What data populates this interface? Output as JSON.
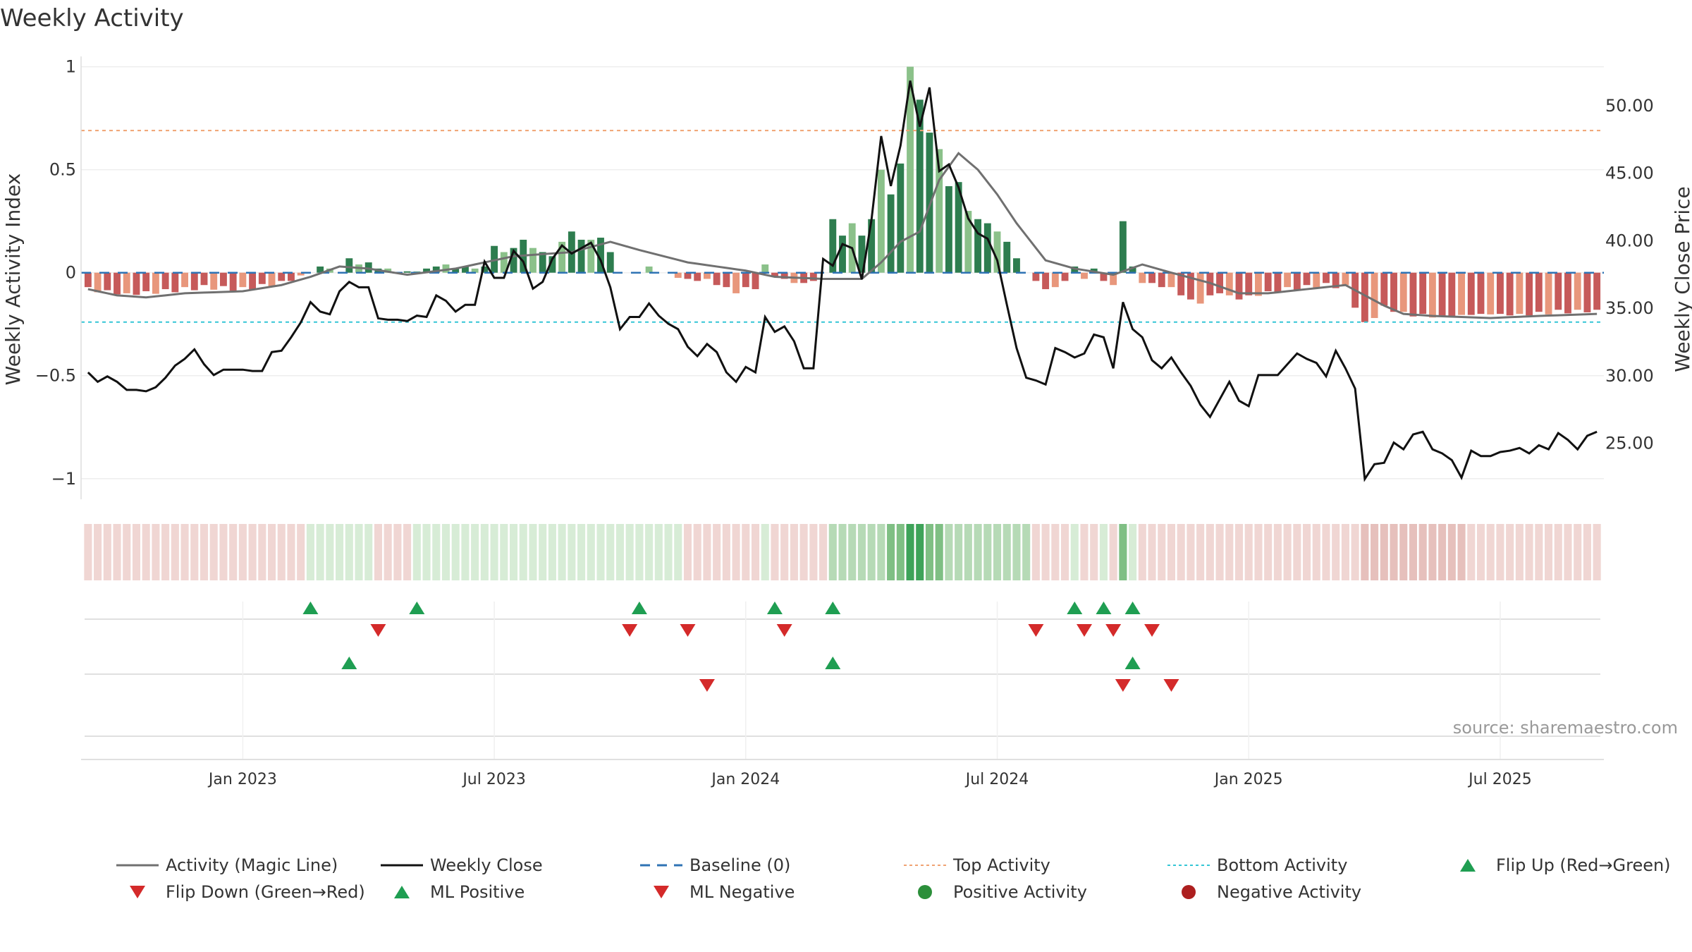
{
  "chart_data": {
    "type": "bar+line",
    "title": "Weekly Activity",
    "ylabel_left": "Weekly Activity Index",
    "ylabel_right": "Weekly Close Price",
    "ylim_left": [
      -1.1,
      1.05
    ],
    "ylim_right": [
      20.8,
      53.6
    ],
    "yticks_left": [
      1,
      0.5,
      0,
      -0.5,
      -1
    ],
    "yticks_left_labels": [
      "1",
      "0.5",
      "0",
      "−0.5",
      "−1"
    ],
    "yticks_right": [
      50,
      45,
      40,
      35,
      30,
      25
    ],
    "yticks_right_labels": [
      "50.00",
      "45.00",
      "40.00",
      "35.00",
      "30.00",
      "25.00"
    ],
    "x_start": "2022-09-12",
    "weeks": 157,
    "xticks": [
      {
        "week": 16,
        "label": "Jan 2023"
      },
      {
        "week": 42,
        "label": "Jul 2023"
      },
      {
        "week": 68,
        "label": "Jan 2024"
      },
      {
        "week": 94,
        "label": "Jul 2024"
      },
      {
        "week": 120,
        "label": "Jan 2025"
      },
      {
        "week": 146,
        "label": "Jul 2025"
      }
    ],
    "top_activity": 0.69,
    "bottom_activity": -0.24,
    "baseline": 0,
    "activity_keys": [
      [
        0,
        -0.08
      ],
      [
        3,
        -0.11
      ],
      [
        6,
        -0.12
      ],
      [
        10,
        -0.1
      ],
      [
        16,
        -0.09
      ],
      [
        20,
        -0.06
      ],
      [
        23,
        -0.02
      ],
      [
        26,
        0.03
      ],
      [
        29,
        0.02
      ],
      [
        33,
        -0.01
      ],
      [
        38,
        0.02
      ],
      [
        44,
        0.08
      ],
      [
        50,
        0.1
      ],
      [
        54,
        0.15
      ],
      [
        57,
        0.11
      ],
      [
        62,
        0.05
      ],
      [
        68,
        0.01
      ],
      [
        71,
        -0.02
      ],
      [
        76,
        -0.03
      ],
      [
        80,
        -0.03
      ],
      [
        82,
        0.05
      ],
      [
        84,
        0.15
      ],
      [
        86,
        0.2
      ],
      [
        88,
        0.45
      ],
      [
        90,
        0.58
      ],
      [
        92,
        0.5
      ],
      [
        94,
        0.38
      ],
      [
        96,
        0.24
      ],
      [
        99,
        0.06
      ],
      [
        102,
        0.02
      ],
      [
        106,
        -0.01
      ],
      [
        109,
        0.04
      ],
      [
        112,
        0.0
      ],
      [
        116,
        -0.05
      ],
      [
        119,
        -0.1
      ],
      [
        122,
        -0.1
      ],
      [
        126,
        -0.08
      ],
      [
        130,
        -0.06
      ],
      [
        134,
        -0.16
      ],
      [
        136,
        -0.2
      ],
      [
        139,
        -0.21
      ],
      [
        145,
        -0.22
      ],
      [
        150,
        -0.21
      ],
      [
        156,
        -0.2
      ]
    ],
    "close_keys": [
      [
        0,
        30.2
      ],
      [
        1,
        29.5
      ],
      [
        2,
        29.9
      ],
      [
        3,
        29.5
      ],
      [
        4,
        28.9
      ],
      [
        5,
        28.9
      ],
      [
        6,
        28.8
      ],
      [
        7,
        29.1
      ],
      [
        8,
        29.8
      ],
      [
        9,
        30.7
      ],
      [
        10,
        31.2
      ],
      [
        11,
        31.9
      ],
      [
        12,
        30.8
      ],
      [
        13,
        30.0
      ],
      [
        14,
        30.4
      ],
      [
        15,
        30.4
      ],
      [
        16,
        30.4
      ],
      [
        17,
        30.3
      ],
      [
        18,
        30.3
      ],
      [
        19,
        31.7
      ],
      [
        20,
        31.8
      ],
      [
        21,
        32.8
      ],
      [
        22,
        33.9
      ],
      [
        23,
        35.4
      ],
      [
        24,
        34.7
      ],
      [
        25,
        34.5
      ],
      [
        26,
        36.2
      ],
      [
        27,
        36.9
      ],
      [
        28,
        36.5
      ],
      [
        29,
        36.5
      ],
      [
        30,
        34.2
      ],
      [
        31,
        34.1
      ],
      [
        32,
        34.1
      ],
      [
        33,
        34.0
      ],
      [
        34,
        34.4
      ],
      [
        35,
        34.3
      ],
      [
        36,
        35.9
      ],
      [
        37,
        35.5
      ],
      [
        38,
        34.7
      ],
      [
        39,
        35.2
      ],
      [
        40,
        35.2
      ],
      [
        41,
        38.4
      ],
      [
        42,
        37.2
      ],
      [
        43,
        37.2
      ],
      [
        44,
        39.2
      ],
      [
        45,
        38.4
      ],
      [
        46,
        36.4
      ],
      [
        47,
        36.9
      ],
      [
        48,
        38.6
      ],
      [
        49,
        39.6
      ],
      [
        50,
        39.0
      ],
      [
        51,
        39.4
      ],
      [
        52,
        39.8
      ],
      [
        53,
        38.5
      ],
      [
        54,
        36.5
      ],
      [
        55,
        33.4
      ],
      [
        56,
        34.3
      ],
      [
        57,
        34.3
      ],
      [
        58,
        35.3
      ],
      [
        59,
        34.4
      ],
      [
        60,
        33.8
      ],
      [
        61,
        33.4
      ],
      [
        62,
        32.1
      ],
      [
        63,
        31.4
      ],
      [
        64,
        32.3
      ],
      [
        65,
        31.7
      ],
      [
        66,
        30.2
      ],
      [
        67,
        29.5
      ],
      [
        68,
        30.6
      ],
      [
        69,
        30.2
      ],
      [
        70,
        34.3
      ],
      [
        71,
        33.2
      ],
      [
        72,
        33.6
      ],
      [
        73,
        32.5
      ],
      [
        74,
        30.5
      ],
      [
        75,
        30.5
      ],
      [
        76,
        38.6
      ],
      [
        77,
        38.1
      ],
      [
        78,
        39.7
      ],
      [
        79,
        39.4
      ],
      [
        80,
        37.1
      ],
      [
        81,
        41.5
      ],
      [
        82,
        47.7
      ],
      [
        83,
        44.0
      ],
      [
        84,
        47.0
      ],
      [
        85,
        51.8
      ],
      [
        86,
        48.4
      ],
      [
        87,
        51.3
      ],
      [
        88,
        45.1
      ],
      [
        89,
        45.6
      ],
      [
        90,
        43.9
      ],
      [
        91,
        41.6
      ],
      [
        92,
        40.5
      ],
      [
        93,
        40.1
      ],
      [
        94,
        38.5
      ],
      [
        95,
        35.2
      ],
      [
        96,
        32.0
      ],
      [
        97,
        29.8
      ],
      [
        98,
        29.6
      ],
      [
        99,
        29.3
      ],
      [
        100,
        32.0
      ],
      [
        101,
        31.7
      ],
      [
        102,
        31.3
      ],
      [
        103,
        31.6
      ],
      [
        104,
        33.0
      ],
      [
        105,
        32.8
      ],
      [
        106,
        30.5
      ],
      [
        107,
        35.4
      ],
      [
        108,
        33.4
      ],
      [
        109,
        32.8
      ],
      [
        110,
        31.1
      ],
      [
        111,
        30.5
      ],
      [
        112,
        31.3
      ],
      [
        113,
        30.2
      ],
      [
        114,
        29.2
      ],
      [
        115,
        27.8
      ],
      [
        116,
        26.9
      ],
      [
        117,
        28.2
      ],
      [
        118,
        29.5
      ],
      [
        119,
        28.1
      ],
      [
        120,
        27.7
      ],
      [
        121,
        30.0
      ],
      [
        122,
        30.0
      ],
      [
        123,
        30.0
      ],
      [
        124,
        30.8
      ],
      [
        125,
        31.6
      ],
      [
        126,
        31.2
      ],
      [
        127,
        30.9
      ],
      [
        128,
        29.9
      ],
      [
        129,
        31.8
      ],
      [
        130,
        30.5
      ],
      [
        131,
        29.0
      ],
      [
        132,
        22.3
      ],
      [
        133,
        23.4
      ],
      [
        134,
        23.5
      ],
      [
        135,
        25.0
      ],
      [
        136,
        24.5
      ],
      [
        137,
        25.6
      ],
      [
        138,
        25.8
      ],
      [
        139,
        24.5
      ],
      [
        140,
        24.2
      ],
      [
        141,
        23.7
      ],
      [
        142,
        22.4
      ],
      [
        143,
        24.4
      ],
      [
        144,
        24.0
      ],
      [
        145,
        24.0
      ],
      [
        146,
        24.3
      ],
      [
        147,
        24.4
      ],
      [
        148,
        24.6
      ],
      [
        149,
        24.2
      ],
      [
        150,
        24.8
      ],
      [
        151,
        24.5
      ],
      [
        152,
        25.7
      ],
      [
        153,
        25.2
      ],
      [
        154,
        24.5
      ],
      [
        155,
        25.5
      ],
      [
        156,
        25.8
      ]
    ],
    "bar_keys": [
      [
        0,
        -0.07,
        -0.09
      ],
      [
        4,
        -0.1,
        -0.11
      ],
      [
        8,
        -0.08,
        -0.1
      ],
      [
        12,
        -0.06,
        -0.08
      ],
      [
        16,
        -0.07,
        -0.09
      ],
      [
        20,
        -0.04,
        -0.06
      ],
      [
        23,
        0.0,
        0.0
      ],
      [
        24,
        0.03,
        0.04
      ],
      [
        25,
        0.01,
        0.02
      ],
      [
        26,
        0.0,
        0.0
      ],
      [
        27,
        0.05,
        0.07
      ],
      [
        28,
        0.04,
        0.08
      ],
      [
        29,
        0.03,
        0.05
      ],
      [
        30,
        0.02,
        0.04
      ],
      [
        32,
        0.0,
        0.0
      ],
      [
        35,
        0.01,
        0.02
      ],
      [
        36,
        0.03,
        0.05
      ],
      [
        37,
        0.02,
        0.04
      ],
      [
        38,
        0.02,
        0.03
      ],
      [
        39,
        0.02,
        0.03
      ],
      [
        40,
        0.02,
        0.04
      ],
      [
        41,
        0.02,
        0.03
      ],
      [
        42,
        0.13,
        0.15
      ],
      [
        43,
        0.08,
        0.1
      ],
      [
        44,
        0.12,
        0.14
      ],
      [
        45,
        0.14,
        0.16
      ],
      [
        46,
        0.12,
        0.15
      ],
      [
        47,
        0.08,
        0.1
      ],
      [
        48,
        0.08,
        0.09
      ],
      [
        49,
        0.11,
        0.15
      ],
      [
        50,
        0.2,
        0.22
      ],
      [
        51,
        0.14,
        0.16
      ],
      [
        52,
        0.16,
        0.18
      ],
      [
        53,
        0.17,
        0.17
      ],
      [
        54,
        0.1,
        0.06
      ],
      [
        55,
        0.0,
        0.0
      ],
      [
        56,
        0.0,
        0.0
      ],
      [
        57,
        0.0,
        0.0
      ],
      [
        58,
        0.03,
        0.04
      ],
      [
        59,
        0.03,
        0.0
      ],
      [
        60,
        0.0,
        0.0
      ],
      [
        62,
        -0.03,
        -0.05
      ],
      [
        64,
        -0.03,
        -0.03
      ],
      [
        66,
        -0.07,
        -0.09
      ],
      [
        67,
        -0.1,
        -0.1
      ],
      [
        68,
        -0.07,
        -0.06
      ],
      [
        69,
        -0.06,
        -0.08
      ],
      [
        70,
        0.04,
        0.05
      ],
      [
        71,
        -0.02,
        -0.02
      ],
      [
        72,
        -0.03,
        -0.03
      ],
      [
        73,
        -0.04,
        -0.05
      ],
      [
        74,
        -0.05,
        -0.06
      ],
      [
        75,
        -0.03,
        -0.04
      ],
      [
        76,
        0.0,
        0.0
      ],
      [
        77,
        0.26,
        0.26
      ],
      [
        78,
        0.18,
        0.18
      ],
      [
        79,
        0.24,
        0.24
      ],
      [
        80,
        0.18,
        0.18
      ],
      [
        81,
        0.26,
        0.26
      ],
      [
        82,
        0.5,
        0.65
      ],
      [
        83,
        0.38,
        0.38
      ],
      [
        84,
        0.53,
        0.53
      ],
      [
        85,
        1.0,
        1.0
      ],
      [
        86,
        0.84,
        0.84
      ],
      [
        87,
        0.68,
        0.68
      ],
      [
        88,
        0.6,
        0.6
      ],
      [
        89,
        0.42,
        0.42
      ],
      [
        90,
        0.44,
        0.44
      ],
      [
        91,
        0.3,
        0.3
      ],
      [
        92,
        0.26,
        0.26
      ],
      [
        93,
        0.24,
        0.24
      ],
      [
        94,
        0.2,
        0.2
      ],
      [
        95,
        0.15,
        0.15
      ],
      [
        96,
        0.07,
        0.07
      ],
      [
        97,
        0.0,
        0.0
      ],
      [
        98,
        -0.04,
        -0.06
      ],
      [
        99,
        -0.06,
        -0.08
      ],
      [
        100,
        -0.07,
        -0.09
      ],
      [
        101,
        -0.04,
        -0.04
      ],
      [
        102,
        0.03,
        0.03
      ],
      [
        103,
        -0.03,
        -0.03
      ],
      [
        104,
        0.02,
        0.02
      ],
      [
        105,
        -0.03,
        -0.04
      ],
      [
        106,
        -0.06,
        -0.06
      ],
      [
        107,
        0.25,
        0.25
      ],
      [
        108,
        0.03,
        0.03
      ],
      [
        109,
        -0.03,
        -0.05
      ],
      [
        110,
        -0.05,
        -0.06
      ],
      [
        111,
        -0.06,
        -0.07
      ],
      [
        112,
        -0.07,
        -0.1
      ],
      [
        113,
        -0.09,
        -0.11
      ],
      [
        114,
        -0.13,
        -0.15
      ],
      [
        115,
        -0.15,
        -0.15
      ],
      [
        116,
        -0.11,
        -0.12
      ],
      [
        117,
        -0.09,
        -0.1
      ],
      [
        118,
        -0.11,
        -0.13
      ],
      [
        119,
        -0.12,
        -0.13
      ],
      [
        120,
        -0.11,
        -0.12
      ],
      [
        124,
        -0.07,
        -0.09
      ],
      [
        128,
        -0.05,
        -0.07
      ],
      [
        130,
        -0.06,
        -0.08
      ],
      [
        132,
        -0.24,
        -0.26
      ],
      [
        133,
        -0.2,
        -0.22
      ],
      [
        134,
        -0.16,
        -0.17
      ],
      [
        136,
        -0.19,
        -0.21
      ],
      [
        140,
        -0.21,
        -0.22
      ],
      [
        144,
        -0.2,
        -0.2
      ],
      [
        148,
        -0.2,
        -0.21
      ],
      [
        152,
        -0.18,
        -0.2
      ],
      [
        156,
        -0.18,
        -0.19
      ]
    ],
    "color_palette": {
      "pos_strong": "#2e7d4f",
      "pos_light": "#8bc18a",
      "neg_strong": "#c65a5a",
      "neg_light": "#e8977c",
      "band_pos_1": "#d7ecd6",
      "band_pos_2": "#b6dab6",
      "band_pos_3": "#7fbf84",
      "band_pos_4": "#3ea359",
      "band_neg_1": "#f0d6d3",
      "band_neg_2": "#e6c0bc",
      "close": "#111111",
      "magic": "#707070",
      "baseline": "#2f73b4",
      "top": "#f0a373",
      "bottom": "#35c6d6",
      "flip_up": "#1f9e52",
      "flip_down": "#d42a2a",
      "pos_dot": "#2b8f3a",
      "neg_dot": "#ad1f1f"
    },
    "band_levels": [
      [
        0,
        -1
      ],
      [
        23,
        1
      ],
      [
        30,
        -1
      ],
      [
        34,
        1
      ],
      [
        56,
        1
      ],
      [
        57,
        1
      ],
      [
        62,
        -1
      ],
      [
        70,
        1
      ],
      [
        71,
        -1
      ],
      [
        77,
        2
      ],
      [
        83,
        3
      ],
      [
        85,
        4
      ],
      [
        87,
        3
      ],
      [
        89,
        2
      ],
      [
        98,
        -1
      ],
      [
        102,
        1
      ],
      [
        103,
        -1
      ],
      [
        105,
        1
      ],
      [
        106,
        -1
      ],
      [
        107,
        3
      ],
      [
        108,
        1
      ],
      [
        109,
        -1
      ],
      [
        132,
        -2
      ],
      [
        143,
        -1
      ],
      [
        157,
        -1
      ]
    ],
    "flip_up_weeks": [
      23,
      34,
      57,
      71,
      77,
      102,
      105,
      108
    ],
    "flip_down_weeks": [
      30,
      56,
      62,
      72,
      98,
      103,
      106,
      110
    ],
    "ml_positive_weeks": [
      27,
      77,
      108
    ],
    "ml_negative_weeks": [
      64,
      107,
      112
    ],
    "source": "source: sharemaestro.com",
    "legend": [
      {
        "label": "Activity (Magic Line)",
        "symbol": "magic"
      },
      {
        "label": "Weekly Close",
        "symbol": "close"
      },
      {
        "label": "Baseline (0)",
        "symbol": "baseline"
      },
      {
        "label": "Top Activity",
        "symbol": "top"
      },
      {
        "label": "Bottom Activity",
        "symbol": "bottom"
      },
      {
        "label": "Flip Up (Red→Green)",
        "symbol": "flip_up"
      },
      {
        "label": "Flip Down (Green→Red)",
        "symbol": "flip_down"
      },
      {
        "label": "ML Positive",
        "symbol": "flip_up"
      },
      {
        "label": "ML Negative",
        "symbol": "flip_down"
      },
      {
        "label": "Positive Activity",
        "symbol": "pos_dot"
      },
      {
        "label": "Negative Activity",
        "symbol": "neg_dot"
      }
    ]
  }
}
